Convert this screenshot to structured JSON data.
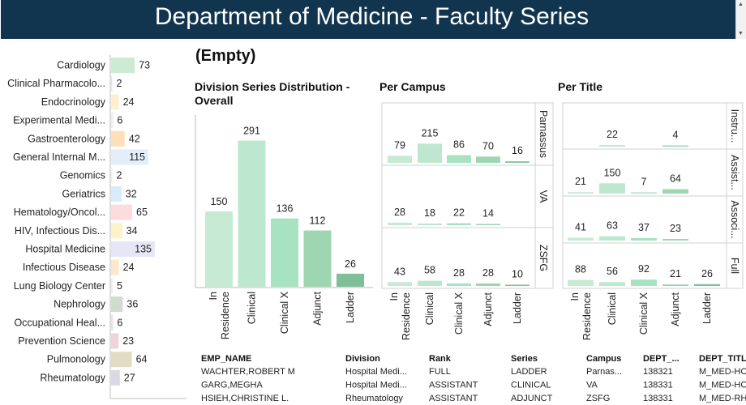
{
  "dashboard": {
    "title": "Department of Medicine - Faculty Series",
    "filter_value": "(Empty)"
  },
  "chart_data": [
    {
      "type": "bar",
      "orientation": "horizontal",
      "name": "divisions",
      "categories": [
        "Cardiology",
        "Clinical Pharmacolo...",
        "Endocrinology",
        "Experimental Medi...",
        "Gastroenterology",
        "General Internal M...",
        "Genomics",
        "Geriatrics",
        "Hematology/Oncol...",
        "HIV, Infectious Dis...",
        "Hospital Medicine",
        "Infectious Disease",
        "Lung Biology Center",
        "Nephrology",
        "Occupational Heal...",
        "Prevention Science",
        "Pulmonology",
        "Rheumatology"
      ],
      "values": [
        73,
        2,
        24,
        6,
        42,
        115,
        2,
        32,
        65,
        34,
        135,
        24,
        5,
        36,
        6,
        23,
        64,
        27
      ],
      "colors": [
        "#cdebd3",
        "#dceaf5",
        "#fdf0cf",
        "#e9eef7",
        "#fde0b8",
        "#e3eef8",
        "#eef2ee",
        "#d9ebf8",
        "#fcdcdc",
        "#fdf1c8",
        "#e7e6f7",
        "#fde7cc",
        "#eeeeee",
        "#cfdccf",
        "#e2e4ea",
        "#eed5d8",
        "#e3dcc5",
        "#dcd9e6"
      ]
    },
    {
      "type": "bar",
      "name": "overall",
      "title": "Division Series Distribution - Overall",
      "categories": [
        "In Residence",
        "Clinical",
        "Clinical X",
        "Adjunct",
        "Ladder"
      ],
      "values": [
        150,
        291,
        136,
        112,
        26
      ],
      "colors": [
        "#c6ead3",
        "#bde8cf",
        "#a7e2c1",
        "#9ed6b2",
        "#7fbf97"
      ]
    },
    {
      "type": "bar",
      "name": "per_campus",
      "title": "Per Campus",
      "categories": [
        "In Residence",
        "Clinical",
        "Clinical X",
        "Adjunct",
        "Ladder"
      ],
      "series": [
        {
          "name": "Parnassus",
          "values": [
            79,
            215,
            86,
            70,
            16
          ]
        },
        {
          "name": "VA",
          "values": [
            28,
            18,
            22,
            14,
            null
          ]
        },
        {
          "name": "ZSFG",
          "values": [
            43,
            58,
            28,
            28,
            10
          ]
        }
      ]
    },
    {
      "type": "bar",
      "name": "per_title",
      "title": "Per Title",
      "categories": [
        "In Residence",
        "Clinical",
        "Clinical X",
        "Adjunct",
        "Ladder"
      ],
      "series": [
        {
          "name": "Instru...",
          "values": [
            null,
            22,
            null,
            4,
            null
          ]
        },
        {
          "name": "Assist...",
          "values": [
            21,
            150,
            7,
            64,
            null
          ]
        },
        {
          "name": "Associ...",
          "values": [
            41,
            63,
            37,
            23,
            null
          ]
        },
        {
          "name": "Full",
          "values": [
            88,
            56,
            92,
            21,
            26
          ]
        }
      ]
    }
  ],
  "table": {
    "columns": [
      "EMP_NAME",
      "Division",
      "Rank",
      "Series",
      "Campus",
      "DEPT_...",
      "DEPT_TITL"
    ],
    "rows": [
      [
        "WACHTER,ROBERT M",
        "Hospital Medi...",
        "FULL",
        "LADDER",
        "Parnas...",
        "138321",
        "M_MED-HC"
      ],
      [
        "GARG,MEGHA",
        "Hospital Medi...",
        "ASSISTANT",
        "CLINICAL",
        "VA",
        "138331",
        "M_MED-HC"
      ],
      [
        "HSIEH,CHRISTINE L.",
        "Rheumatology",
        "ASSISTANT",
        "ADJUNCT",
        "ZSFG",
        "138331",
        "M_MED-RH"
      ]
    ]
  }
}
